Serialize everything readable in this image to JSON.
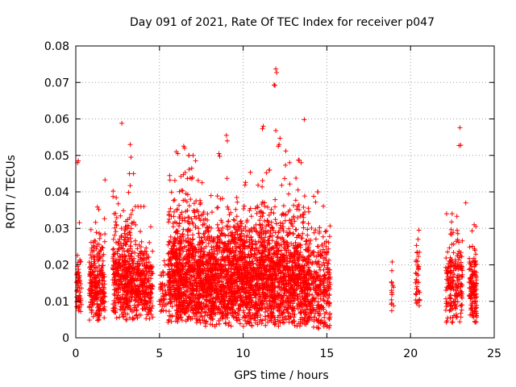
{
  "chart_data": {
    "type": "scatter",
    "title": "Day 091 of 2021, Rate Of TEC Index for receiver p047",
    "xlabel": "GPS time / hours",
    "ylabel": "ROTI / TECUs",
    "xlim": [
      0,
      25
    ],
    "ylim": [
      0,
      0.08
    ],
    "x_ticks": [
      "0",
      "5",
      "10",
      "15",
      "20",
      "25"
    ],
    "y_ticks": [
      "0",
      "0.01",
      "0.02",
      "0.03",
      "0.04",
      "0.05",
      "0.06",
      "0.07",
      "0.08"
    ],
    "grid": true,
    "marker": "plus",
    "color": "#ff0000",
    "series": [
      {
        "name": "p047",
        "clusters": [
          {
            "x0": 0.05,
            "x1": 0.35,
            "n": 60,
            "base": 0.011,
            "spread": 0.008,
            "ymin": 0.007,
            "ymax": 0.032
          },
          {
            "x0": 0.8,
            "x1": 1.75,
            "n": 260,
            "base": 0.011,
            "spread": 0.008,
            "ymin": 0.004,
            "ymax": 0.038
          },
          {
            "x0": 2.2,
            "x1": 3.5,
            "n": 420,
            "base": 0.014,
            "spread": 0.009,
            "ymin": 0.004,
            "ymax": 0.045
          },
          {
            "x0": 3.5,
            "x1": 4.6,
            "n": 280,
            "base": 0.013,
            "spread": 0.008,
            "ymin": 0.005,
            "ymax": 0.036
          },
          {
            "x0": 5.0,
            "x1": 5.4,
            "n": 40,
            "base": 0.012,
            "spread": 0.006,
            "ymin": 0.007,
            "ymax": 0.023
          },
          {
            "x0": 5.5,
            "x1": 7.2,
            "n": 700,
            "base": 0.013,
            "spread": 0.01,
            "ymin": 0.004,
            "ymax": 0.05
          },
          {
            "x0": 7.2,
            "x1": 9.5,
            "n": 900,
            "base": 0.013,
            "spread": 0.009,
            "ymin": 0.003,
            "ymax": 0.045
          },
          {
            "x0": 9.5,
            "x1": 12.0,
            "n": 1000,
            "base": 0.013,
            "spread": 0.009,
            "ymin": 0.003,
            "ymax": 0.046
          },
          {
            "x0": 12.0,
            "x1": 14.0,
            "n": 700,
            "base": 0.013,
            "spread": 0.009,
            "ymin": 0.003,
            "ymax": 0.048
          },
          {
            "x0": 14.0,
            "x1": 15.2,
            "n": 260,
            "base": 0.011,
            "spread": 0.007,
            "ymin": 0.002,
            "ymax": 0.04
          },
          {
            "x0": 18.85,
            "x1": 19.0,
            "n": 14,
            "base": 0.012,
            "spread": 0.004,
            "ymin": 0.007,
            "ymax": 0.021
          },
          {
            "x0": 20.3,
            "x1": 20.55,
            "n": 35,
            "base": 0.011,
            "spread": 0.005,
            "ymin": 0.007,
            "ymax": 0.03
          },
          {
            "x0": 22.1,
            "x1": 23.1,
            "n": 200,
            "base": 0.013,
            "spread": 0.007,
            "ymin": 0.003,
            "ymax": 0.034
          },
          {
            "x0": 23.5,
            "x1": 23.95,
            "n": 140,
            "base": 0.012,
            "spread": 0.006,
            "ymin": 0.004,
            "ymax": 0.031
          }
        ],
        "outliers": [
          [
            0.1,
            0.048
          ],
          [
            0.15,
            0.0485
          ],
          [
            2.75,
            0.0588
          ],
          [
            3.25,
            0.053
          ],
          [
            3.3,
            0.0495
          ],
          [
            6.0,
            0.051
          ],
          [
            6.1,
            0.0505
          ],
          [
            6.45,
            0.0525
          ],
          [
            6.5,
            0.052
          ],
          [
            8.55,
            0.0505
          ],
          [
            8.6,
            0.0498
          ],
          [
            9.0,
            0.0555
          ],
          [
            9.05,
            0.054
          ],
          [
            11.15,
            0.0573
          ],
          [
            11.2,
            0.058
          ],
          [
            11.85,
            0.0693
          ],
          [
            11.9,
            0.0692
          ],
          [
            11.95,
            0.0737
          ],
          [
            12.0,
            0.0727
          ],
          [
            11.95,
            0.0568
          ],
          [
            12.2,
            0.0547
          ],
          [
            12.1,
            0.0525
          ],
          [
            12.15,
            0.053
          ],
          [
            13.65,
            0.0598
          ],
          [
            13.3,
            0.0487
          ],
          [
            13.35,
            0.0487
          ],
          [
            1.75,
            0.0433
          ],
          [
            12.55,
            0.0512
          ],
          [
            14.45,
            0.04
          ],
          [
            22.95,
            0.0576
          ],
          [
            23.0,
            0.0528
          ],
          [
            22.9,
            0.0527
          ],
          [
            23.3,
            0.037
          ],
          [
            23.8,
            0.031
          ],
          [
            23.9,
            0.0305
          ],
          [
            23.85,
            0.024
          ],
          [
            20.5,
            0.0295
          ],
          [
            20.45,
            0.027
          ],
          [
            20.4,
            0.0235
          ],
          [
            18.9,
            0.0208
          ]
        ]
      }
    ]
  }
}
